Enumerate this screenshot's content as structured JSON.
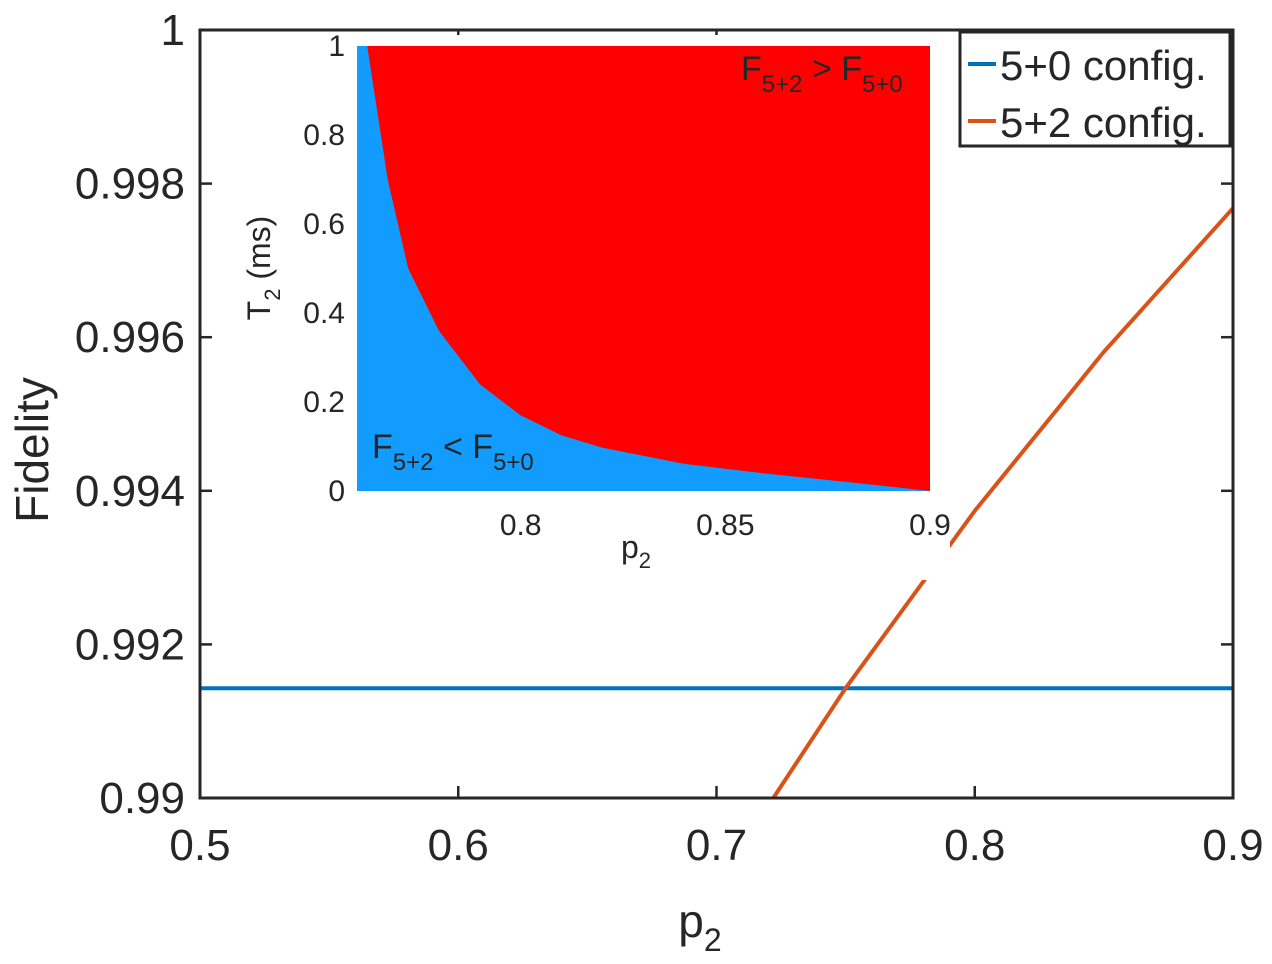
{
  "chart_data": [
    {
      "type": "line",
      "xlabel": "p",
      "xlabel_sub": "2",
      "ylabel": "Fidelity",
      "xlim": [
        0.5,
        0.9
      ],
      "ylim": [
        0.99,
        1.0
      ],
      "xticks": [
        0.5,
        0.6,
        0.7,
        0.8,
        0.9
      ],
      "xtick_labels": [
        "0.5",
        "0.6",
        "0.7",
        "0.8",
        "0.9"
      ],
      "yticks": [
        0.99,
        0.992,
        0.994,
        0.996,
        0.998,
        1.0
      ],
      "ytick_labels": [
        "0.99",
        "0.992",
        "0.994",
        "0.996",
        "0.998",
        "1"
      ],
      "legend_position": "top-right",
      "series": [
        {
          "name": "5+0 config.",
          "color": "#0072BD",
          "x": [
            0.5,
            0.9
          ],
          "y": [
            0.99143,
            0.99143
          ]
        },
        {
          "name": "5+2 config.",
          "color": "#D95319",
          "x": [
            0.722,
            0.75,
            0.8,
            0.85,
            0.9
          ],
          "y": [
            0.99,
            0.99143,
            0.99374,
            0.99581,
            0.99768
          ]
        }
      ]
    },
    {
      "type": "area",
      "position": "inset",
      "xlabel": "p",
      "xlabel_sub": "2",
      "ylabel": "T",
      "ylabel_sub": "2",
      "ylabel_suffix": " (ms)",
      "xlim": [
        0.76,
        0.9
      ],
      "ylim": [
        0,
        1
      ],
      "xticks": [
        0.8,
        0.85,
        0.9
      ],
      "xtick_labels": [
        "0.8",
        "0.85",
        "0.9"
      ],
      "yticks": [
        0,
        0.2,
        0.4,
        0.6,
        0.8,
        1
      ],
      "ytick_labels": [
        "0",
        "0.2",
        "0.4",
        "0.6",
        "0.8",
        "1"
      ],
      "boundary": {
        "x": [
          0.7625,
          0.7675,
          0.7725,
          0.78,
          0.79,
          0.8,
          0.81,
          0.82,
          0.84,
          0.86,
          0.88,
          0.9
        ],
        "y": [
          1.0,
          0.7,
          0.5,
          0.36,
          0.24,
          0.17,
          0.125,
          0.097,
          0.061,
          0.039,
          0.02,
          0.0
        ]
      },
      "regions": [
        {
          "name": "below",
          "color": "#139CFF",
          "label_main": "F",
          "label_sub1": "5+2",
          "label_op": " < F",
          "label_sub2": "5+0"
        },
        {
          "name": "above",
          "color": "#FF0000",
          "label_main": "F",
          "label_sub1": "5+2",
          "label_op": " > F",
          "label_sub2": "5+0"
        }
      ]
    }
  ]
}
